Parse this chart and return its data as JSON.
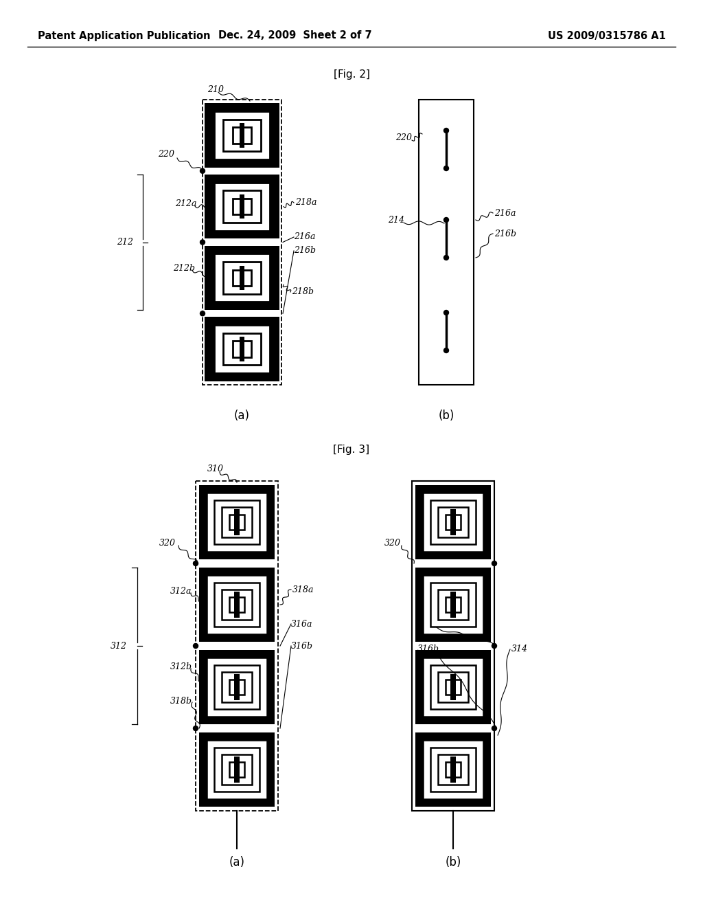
{
  "header_left": "Patent Application Publication",
  "header_mid": "Dec. 24, 2009  Sheet 2 of 7",
  "header_right": "US 2009/0315786 A1",
  "fig2_title": "[Fig. 2]",
  "fig3_title": "[Fig. 3]",
  "bg_color": "#ffffff"
}
